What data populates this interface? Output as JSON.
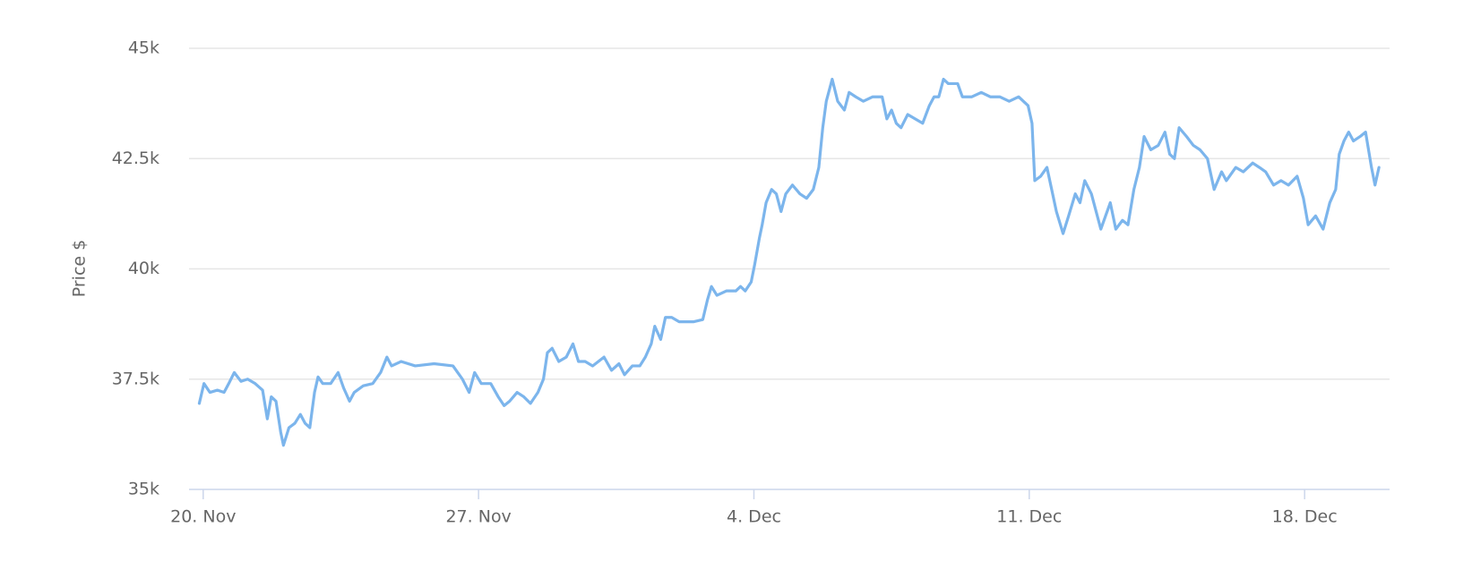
{
  "chart_data": {
    "type": "line",
    "y_label": "Price $",
    "color": "#7cb5ec",
    "grid": true,
    "xlim": [
      -0.36,
      30.16
    ],
    "xticks": [
      {
        "value": 0,
        "label": "20. Nov"
      },
      {
        "value": 7,
        "label": "27. Nov"
      },
      {
        "value": 14,
        "label": "4. Dec"
      },
      {
        "value": 21,
        "label": "11. Dec"
      },
      {
        "value": 28,
        "label": "18. Dec"
      }
    ],
    "ylim": [
      35000,
      45000
    ],
    "yticks": [
      {
        "value": 35000,
        "label": "35k"
      },
      {
        "value": 37500,
        "label": "37.5k"
      },
      {
        "value": 40000,
        "label": "40k"
      },
      {
        "value": 42500,
        "label": "42.5k"
      },
      {
        "value": 45000,
        "label": "45k"
      }
    ],
    "x": [
      -0.1,
      0.02,
      0.17,
      0.36,
      0.53,
      0.65,
      0.79,
      0.96,
      1.13,
      1.32,
      1.51,
      1.63,
      1.73,
      1.85,
      1.97,
      2.04,
      2.18,
      2.33,
      2.47,
      2.59,
      2.71,
      2.83,
      2.92,
      3.04,
      3.24,
      3.43,
      3.57,
      3.72,
      3.84,
      4.07,
      4.31,
      4.51,
      4.67,
      4.79,
      5.03,
      5.39,
      5.87,
      6.35,
      6.59,
      6.76,
      6.9,
      7.07,
      7.31,
      7.5,
      7.65,
      7.79,
      7.98,
      8.15,
      8.32,
      8.51,
      8.65,
      8.75,
      8.87,
      9.04,
      9.23,
      9.4,
      9.54,
      9.71,
      9.9,
      10.19,
      10.38,
      10.57,
      10.71,
      10.91,
      11.1,
      11.24,
      11.39,
      11.48,
      11.63,
      11.75,
      11.91,
      12.1,
      12.46,
      12.7,
      12.82,
      12.92,
      13.06,
      13.3,
      13.54,
      13.66,
      13.78,
      13.93,
      14.02,
      14.14,
      14.21,
      14.31,
      14.45,
      14.57,
      14.69,
      14.81,
      14.98,
      15.17,
      15.34,
      15.51,
      15.65,
      15.75,
      15.84,
      15.99,
      16.13,
      16.3,
      16.42,
      16.59,
      16.78,
      17.02,
      17.26,
      17.38,
      17.5,
      17.62,
      17.74,
      17.91,
      18.1,
      18.29,
      18.46,
      18.58,
      18.7,
      18.82,
      18.94,
      19.18,
      19.3,
      19.54,
      19.78,
      20.01,
      20.25,
      20.49,
      20.73,
      20.97,
      21.07,
      21.14,
      21.29,
      21.45,
      21.57,
      21.69,
      21.86,
      22.0,
      22.17,
      22.29,
      22.41,
      22.58,
      22.7,
      22.82,
      22.94,
      23.06,
      23.2,
      23.37,
      23.51,
      23.66,
      23.8,
      23.92,
      24.09,
      24.28,
      24.45,
      24.57,
      24.69,
      24.81,
      25.0,
      25.17,
      25.34,
      25.53,
      25.7,
      25.89,
      26.01,
      26.25,
      26.44,
      26.68,
      26.85,
      27.01,
      27.21,
      27.4,
      27.59,
      27.81,
      27.97,
      28.09,
      28.28,
      28.47,
      28.64,
      28.79,
      28.88,
      29.0,
      29.12,
      29.24,
      29.41,
      29.55,
      29.7,
      29.79,
      29.89
    ],
    "values": [
      36950,
      37400,
      37200,
      37250,
      37200,
      37400,
      37650,
      37450,
      37500,
      37400,
      37250,
      36600,
      37100,
      37000,
      36300,
      36000,
      36400,
      36500,
      36700,
      36500,
      36400,
      37200,
      37550,
      37400,
      37400,
      37650,
      37300,
      37000,
      37200,
      37350,
      37400,
      37650,
      38000,
      37800,
      37900,
      37800,
      37850,
      37800,
      37500,
      37200,
      37650,
      37400,
      37400,
      37100,
      36900,
      37000,
      37200,
      37100,
      36950,
      37200,
      37500,
      38100,
      38200,
      37900,
      38000,
      38300,
      37900,
      37900,
      37800,
      38000,
      37700,
      37850,
      37600,
      37800,
      37800,
      38000,
      38300,
      38700,
      38400,
      38900,
      38900,
      38800,
      38800,
      38850,
      39300,
      39600,
      39400,
      39500,
      39500,
      39600,
      39500,
      39700,
      40100,
      40700,
      41000,
      41500,
      41800,
      41700,
      41300,
      41700,
      41900,
      41700,
      41600,
      41800,
      42300,
      43200,
      43800,
      44300,
      43800,
      43600,
      44000,
      43900,
      43800,
      43900,
      43900,
      43400,
      43600,
      43300,
      43200,
      43500,
      43400,
      43300,
      43700,
      43900,
      43900,
      44300,
      44200,
      44200,
      43900,
      43900,
      44000,
      43900,
      43900,
      43800,
      43900,
      43700,
      43300,
      42000,
      42100,
      42300,
      41800,
      41300,
      40800,
      41200,
      41700,
      41500,
      42000,
      41700,
      41300,
      40900,
      41200,
      41500,
      40900,
      41100,
      41000,
      41800,
      42300,
      43000,
      42700,
      42800,
      43100,
      42600,
      42500,
      43200,
      43000,
      42800,
      42700,
      42500,
      41800,
      42200,
      42000,
      42300,
      42200,
      42400,
      42300,
      42200,
      41900,
      42000,
      41900,
      42100,
      41600,
      41000,
      41200,
      40900,
      41500,
      41800,
      42600,
      42900,
      43100,
      42900,
      43000,
      43100,
      42300,
      41900,
      42300
    ]
  }
}
